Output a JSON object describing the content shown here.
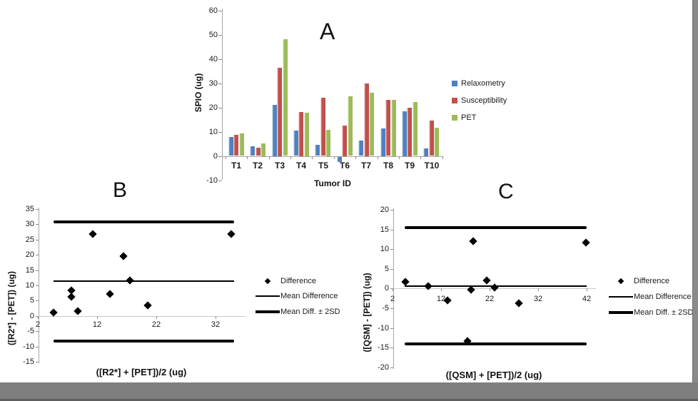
{
  "frame": {
    "background": "#ffffff",
    "bottom_bar_color": "#7f7f7f",
    "right_strip_color": "#8a8a8a"
  },
  "chart_data": [
    {
      "id": "panelA",
      "type": "bar",
      "title": "A",
      "xlabel": "Tumor ID",
      "ylabel": "SPIO (ug)",
      "ylim": [
        -10,
        60
      ],
      "yticks": [
        60,
        50,
        40,
        30,
        20,
        10,
        0,
        -10
      ],
      "grid": false,
      "legend_position": "right",
      "categories": [
        "T1",
        "T2",
        "T3",
        "T4",
        "T5",
        "T6",
        "T7",
        "T8",
        "T9",
        "T10"
      ],
      "series": [
        {
          "name": "Relaxometry",
          "color": "#4f81bd",
          "values": [
            7.7,
            3.9,
            21.2,
            10.4,
            4.5,
            -2.0,
            6.3,
            11.4,
            18.5,
            3.2
          ]
        },
        {
          "name": "Susceptibility",
          "color": "#c0504d",
          "values": [
            8.6,
            3.3,
            36.4,
            18.1,
            23.9,
            12.5,
            29.9,
            23.0,
            20.0,
            14.5
          ]
        },
        {
          "name": "PET",
          "color": "#9bbb59",
          "values": [
            9.2,
            5.2,
            48.0,
            17.8,
            10.8,
            24.5,
            26.0,
            23.2,
            22.1,
            11.7
          ]
        }
      ]
    },
    {
      "id": "panelB",
      "type": "scatter",
      "title": "B",
      "xlabel": "([R2*] + [PET])/2 (ug)",
      "ylabel": "([R2*] - [PET]) (ug)",
      "xlim": [
        2,
        37
      ],
      "ylim": [
        -15,
        35
      ],
      "xticks": [
        2,
        12,
        22,
        32
      ],
      "yticks": [
        35,
        30,
        25,
        20,
        15,
        10,
        5,
        0,
        -5,
        -10,
        -15
      ],
      "grid": false,
      "marker": "diamond",
      "marker_color": "#000000",
      "points": [
        [
          4.7,
          1.2
        ],
        [
          7.7,
          8.3
        ],
        [
          7.7,
          6.2
        ],
        [
          8.7,
          1.5
        ],
        [
          11.3,
          26.9
        ],
        [
          14.2,
          7.3
        ],
        [
          16.4,
          19.6
        ],
        [
          17.5,
          11.6
        ],
        [
          20.6,
          3.5
        ],
        [
          34.7,
          26.8
        ]
      ],
      "mean_difference": 11.3,
      "upper_2sd": 30.9,
      "lower_2sd": -8.3,
      "legend_labels": [
        "Difference",
        "Mean Difference",
        "Mean Diff. ± 2SD"
      ],
      "legend_position": "right"
    },
    {
      "id": "panelC",
      "type": "scatter",
      "title": "C",
      "xlabel": "([QSM] + [PET])/2 (ug)",
      "ylabel": "([QSM] - [PET]) (ug)",
      "xlim": [
        2,
        44
      ],
      "ylim": [
        -20,
        20
      ],
      "xticks": [
        2,
        12,
        22,
        32,
        42
      ],
      "yticks": [
        20,
        15,
        10,
        5,
        0,
        -5,
        -10,
        -15,
        -20
      ],
      "grid": false,
      "marker": "diamond",
      "marker_color": "#000000",
      "points": [
        [
          4.7,
          1.7
        ],
        [
          9.3,
          0.6
        ],
        [
          13.3,
          -3.0
        ],
        [
          17.5,
          -13.3
        ],
        [
          18.2,
          -0.3
        ],
        [
          18.6,
          12.1
        ],
        [
          21.4,
          2.0
        ],
        [
          23.0,
          0.2
        ],
        [
          28.0,
          -3.8
        ],
        [
          41.9,
          11.7
        ]
      ],
      "mean_difference": 0.6,
      "upper_2sd": 15.5,
      "lower_2sd": -14.0,
      "legend_labels": [
        "Difference",
        "Mean Difference",
        "Mean Diff. ± 2SD"
      ],
      "legend_position": "right"
    }
  ]
}
